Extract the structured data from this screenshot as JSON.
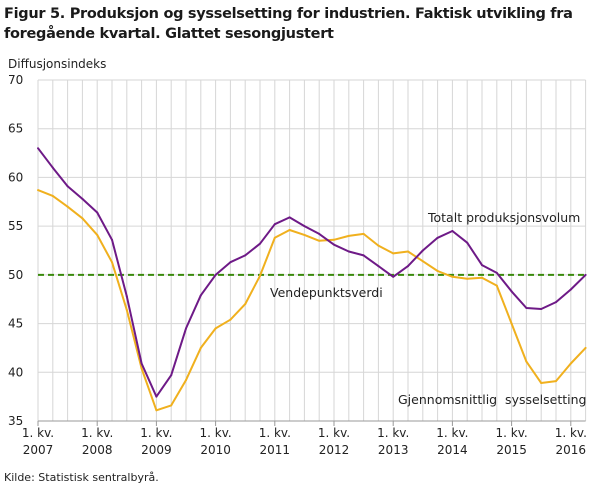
{
  "title": "Figur 5. Produksjon og sysselsetting for industrien. Faktisk utvikling fra foregående kvartal. Glattet sesongjustert",
  "source": "Kilde: Statistisk sentralbyrå.",
  "chart_data": {
    "type": "line",
    "title": "Figur 5. Produksjon og sysselsetting for industrien. Faktisk utvikling fra foregående kvartal. Glattet sesongjustert",
    "ylabel": "Diffusjonsindeks",
    "xlabel": "",
    "ylim": [
      35,
      70
    ],
    "yticks": [
      35,
      40,
      45,
      50,
      55,
      60,
      65,
      70
    ],
    "grid": true,
    "x_start": "2007Q1",
    "x_end": "2016Q2",
    "xtick_labels": [
      {
        "line1": "1. kv.",
        "line2": "2007"
      },
      {
        "line1": "1. kv.",
        "line2": "2008"
      },
      {
        "line1": "1. kv.",
        "line2": "2009"
      },
      {
        "line1": "1. kv.",
        "line2": "2010"
      },
      {
        "line1": "1. kv.",
        "line2": "2011"
      },
      {
        "line1": "1. kv.",
        "line2": "2012"
      },
      {
        "line1": "1. kv.",
        "line2": "2013"
      },
      {
        "line1": "1. kv.",
        "line2": "2014"
      },
      {
        "line1": "1. kv.",
        "line2": "2015"
      },
      {
        "line1": "1. kv.",
        "line2": "2016"
      }
    ],
    "reference_line": {
      "name": "Vendepunktsverdi",
      "value": 50,
      "color": "#3a8a0c"
    },
    "series": [
      {
        "name": "Totalt produksjonsvolum",
        "color": "#6e1a87",
        "values": [
          63.0,
          61.0,
          59.1,
          57.8,
          56.4,
          53.6,
          47.8,
          40.9,
          37.5,
          39.7,
          44.5,
          47.9,
          50.0,
          51.3,
          52.0,
          53.2,
          55.2,
          55.9,
          55.0,
          54.2,
          53.1,
          52.4,
          52.0,
          50.9,
          49.8,
          50.9,
          52.5,
          53.8,
          54.5,
          53.3,
          51.0,
          50.2,
          48.3,
          46.6,
          46.5,
          47.2,
          48.5,
          50.0
        ]
      },
      {
        "name": "Gjennomsnittlig  sysselsetting",
        "color": "#f0b01e",
        "values": [
          58.7,
          58.1,
          57.0,
          55.8,
          54.1,
          51.3,
          46.4,
          40.4,
          36.1,
          36.6,
          39.2,
          42.5,
          44.5,
          45.4,
          47.0,
          49.9,
          53.8,
          54.6,
          54.1,
          53.5,
          53.6,
          54.0,
          54.2,
          53.0,
          52.2,
          52.4,
          51.4,
          50.4,
          49.8,
          49.6,
          49.7,
          48.9,
          45.0,
          41.1,
          38.9,
          39.1,
          40.9,
          42.5
        ]
      }
    ]
  }
}
